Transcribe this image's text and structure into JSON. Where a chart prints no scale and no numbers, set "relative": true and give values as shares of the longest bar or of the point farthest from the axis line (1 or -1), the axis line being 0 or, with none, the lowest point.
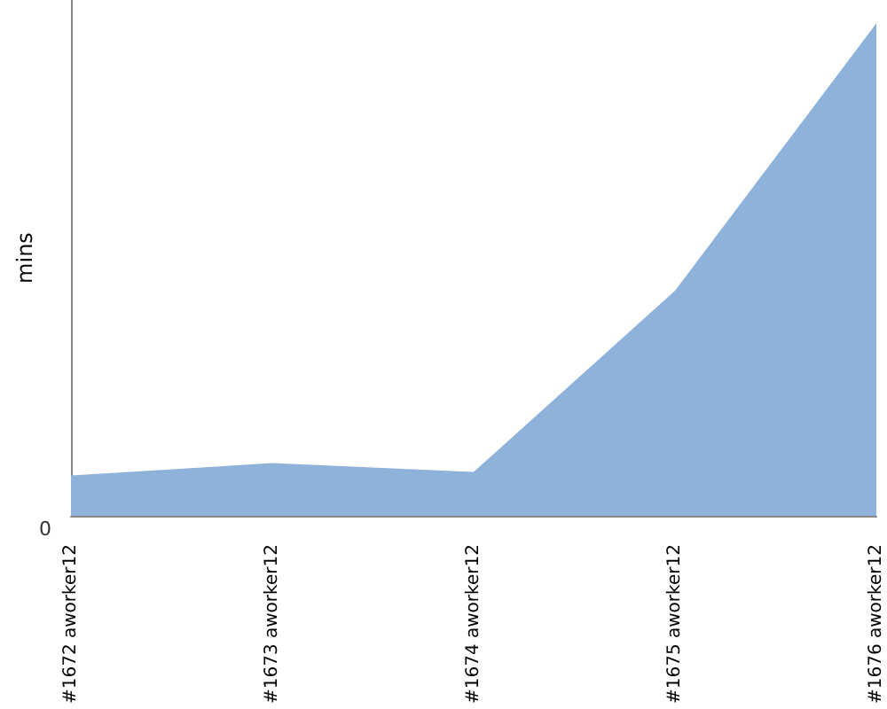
{
  "chart_data": {
    "type": "area",
    "relative": true,
    "ylabel": "mins",
    "categories": [
      "#1672 aworker12",
      "#1673 aworker12",
      "#1674 aworker12",
      "#1675 aworker12",
      "#1676 aworker12"
    ],
    "series": [
      {
        "color": "#8fb2da",
        "values": [
          0.082,
          0.107,
          0.089,
          0.457,
          1
        ]
      }
    ],
    "annotations": [
      "0"
    ],
    "marker": "none"
  }
}
